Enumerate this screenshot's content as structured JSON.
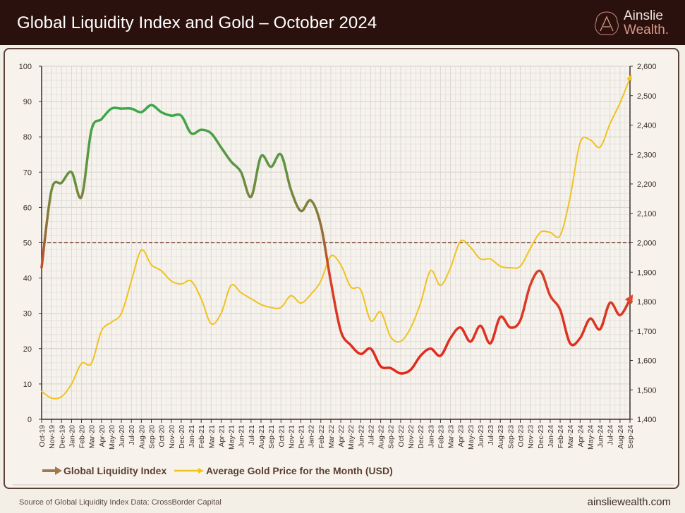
{
  "header": {
    "title": "Global Liquidity Index and Gold – October 2024",
    "logo_line1": "Ainslie",
    "logo_line2": "Wealth."
  },
  "footer": {
    "source": "Source of Global Liquidity Index Data: CrossBorder Capital",
    "website": "ainsliewealth.com"
  },
  "chart_data": {
    "type": "line",
    "title": "Global Liquidity Index and Gold – October 2024",
    "categories": [
      "Oct-19",
      "Nov-19",
      "Dec-19",
      "Jan-20",
      "Feb-20",
      "Mar-20",
      "Apr-20",
      "May-20",
      "Jun-20",
      "Jul-20",
      "Aug-20",
      "Sep-20",
      "Oct-20",
      "Nov-20",
      "Dec-20",
      "Jan-21",
      "Feb-21",
      "Mar-21",
      "Apr-21",
      "May-21",
      "Jun-21",
      "Jul-21",
      "Aug-21",
      "Sep-21",
      "Oct-21",
      "Nov-21",
      "Dec-21",
      "Jan-22",
      "Feb-22",
      "Mar-22",
      "Apr-22",
      "May-22",
      "Jun-22",
      "Jul-22",
      "Aug-22",
      "Sep-22",
      "Oct-22",
      "Nov-22",
      "Dec-22",
      "Jan-23",
      "Feb-23",
      "Mar-23",
      "Apr-23",
      "May-23",
      "Jun-23",
      "Jul-23",
      "Aug-23",
      "Sep-23",
      "Oct-23",
      "Nov-23",
      "Dec-23",
      "Jan-24",
      "Feb-24",
      "Mar-24",
      "Apr-24",
      "May-24",
      "Jun-24",
      "Jul-24",
      "Aug-24",
      "Sep-24"
    ],
    "series": [
      {
        "name": "Global Liquidity Index",
        "axis": "left",
        "values": [
          43,
          65,
          67,
          70,
          63,
          82,
          85,
          88,
          88,
          88,
          87,
          89,
          87,
          86,
          86,
          81,
          82,
          81,
          77,
          73,
          70,
          63,
          74.5,
          71.5,
          75,
          65,
          59,
          62,
          55,
          39,
          25,
          21,
          18.5,
          20,
          15,
          14.5,
          13,
          14,
          18,
          20,
          18,
          23,
          26,
          22,
          26.5,
          21.5,
          29,
          26,
          28,
          38,
          42,
          35,
          31,
          21.5,
          23,
          28.5,
          25.5,
          33,
          29.5,
          34
        ],
        "colors": {
          "high": "#3aa84a",
          "mid": "#8b7a3c",
          "low": "#e0281c"
        }
      },
      {
        "name": "Average Gold Price for the Month (USD)",
        "axis": "right",
        "values": [
          1495,
          1472,
          1477,
          1520,
          1590,
          1590,
          1700,
          1730,
          1760,
          1870,
          1975,
          1925,
          1905,
          1870,
          1860,
          1870,
          1810,
          1725,
          1760,
          1855,
          1830,
          1810,
          1790,
          1780,
          1780,
          1820,
          1795,
          1825,
          1870,
          1955,
          1925,
          1850,
          1840,
          1735,
          1765,
          1680,
          1665,
          1710,
          1795,
          1905,
          1855,
          1915,
          2005,
          1985,
          1945,
          1945,
          1920,
          1915,
          1920,
          1980,
          2035,
          2035,
          2025,
          2155,
          2340,
          2350,
          2325,
          2405,
          2475,
          2560
        ],
        "color": "#f0c21e"
      }
    ],
    "y_left": {
      "lim": [
        0,
        100
      ],
      "ticks": [
        "0",
        "10",
        "20",
        "30",
        "40",
        "50",
        "60",
        "70",
        "80",
        "90",
        "100"
      ]
    },
    "y_right": {
      "lim": [
        1400,
        2600
      ],
      "ticks": [
        "1,400",
        "1,500",
        "1,600",
        "1,700",
        "1,800",
        "1,900",
        "2,000",
        "2,100",
        "2,200",
        "2,300",
        "2,400",
        "2,500",
        "2,600"
      ]
    },
    "reference_line": {
      "value": 50,
      "style": "dashed",
      "color": "#6b2a22"
    },
    "grid": true,
    "legend_position": "bottom"
  }
}
